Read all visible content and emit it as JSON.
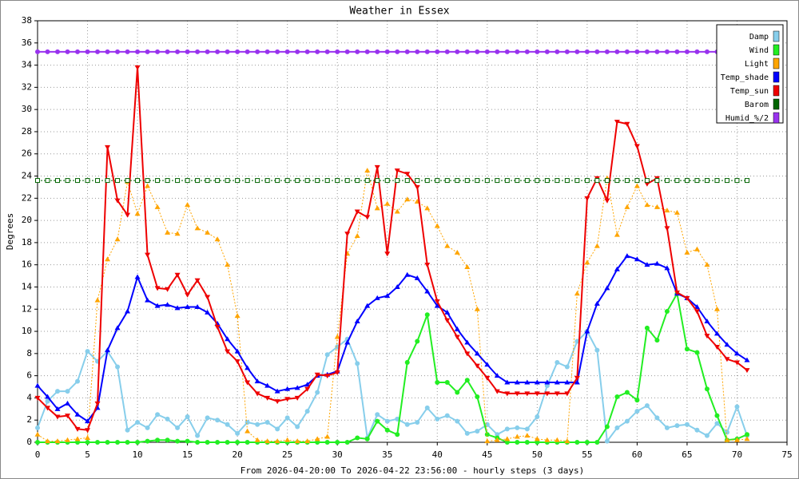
{
  "chart_data": {
    "type": "line",
    "title": "Weather in Essex",
    "ylabel": "Degrees",
    "xlabel": "From 2026-04-20:00 To 2026-04-22 23:56:00 - hourly steps (3 days)",
    "x": [
      0,
      1,
      2,
      3,
      4,
      5,
      6,
      7,
      8,
      9,
      10,
      11,
      12,
      13,
      14,
      15,
      16,
      17,
      18,
      19,
      20,
      21,
      22,
      23,
      24,
      25,
      26,
      27,
      28,
      29,
      30,
      31,
      32,
      33,
      34,
      35,
      36,
      37,
      38,
      39,
      40,
      41,
      42,
      43,
      44,
      45,
      46,
      47,
      48,
      49,
      50,
      51,
      52,
      53,
      54,
      55,
      56,
      57,
      58,
      59,
      60,
      61,
      62,
      63,
      64,
      65,
      66,
      67,
      68,
      69,
      70,
      71
    ],
    "xlim": [
      0,
      75
    ],
    "xticks": [
      0,
      5,
      10,
      15,
      20,
      25,
      30,
      35,
      40,
      45,
      50,
      55,
      60,
      65,
      70,
      75
    ],
    "ylim": [
      0,
      38
    ],
    "yticks": [
      0,
      2,
      4,
      6,
      8,
      10,
      12,
      14,
      16,
      18,
      20,
      22,
      24,
      26,
      28,
      30,
      32,
      34,
      36,
      38
    ],
    "grid": true,
    "legend": "upper right",
    "series": [
      {
        "name": "Damp",
        "color": "#87ceeb",
        "dotted": false,
        "values": [
          1.3,
          3.7,
          4.6,
          4.6,
          5.5,
          8.2,
          7.3,
          8.2,
          6.8,
          1.1,
          1.8,
          1.3,
          2.5,
          2.1,
          1.3,
          2.3,
          0.6,
          2.2,
          2.0,
          1.6,
          0.8,
          1.8,
          1.6,
          1.8,
          1.2,
          2.2,
          1.4,
          2.8,
          4.5,
          7.9,
          8.6,
          9.3,
          7.1,
          0.4,
          2.5,
          1.9,
          2.1,
          1.6,
          1.8,
          3.1,
          2.1,
          2.4,
          1.9,
          0.8,
          1.0,
          1.6,
          0.7,
          1.2,
          1.3,
          1.2,
          2.3,
          5.1,
          7.2,
          6.8,
          9.1,
          10.0,
          8.3,
          0.1,
          1.3,
          1.9,
          2.8,
          3.3,
          2.2,
          1.3,
          1.5,
          1.6,
          1.1,
          0.6,
          1.7,
          0.9,
          3.2,
          0.6
        ]
      },
      {
        "name": "Wind",
        "color": "#22ee22",
        "dotted": false,
        "values": [
          0,
          0,
          0,
          0,
          0,
          0,
          0,
          0,
          0,
          0,
          0,
          0.1,
          0.2,
          0.2,
          0.1,
          0.1,
          0,
          0,
          0,
          0,
          0,
          0,
          0,
          0,
          0,
          0,
          0,
          0,
          0,
          0,
          0,
          0,
          0.4,
          0.3,
          1.9,
          1.1,
          0.7,
          7.2,
          9.1,
          11.5,
          5.4,
          5.4,
          4.5,
          5.6,
          4.1,
          0.7,
          0.4,
          0,
          0,
          0,
          0,
          0,
          0,
          0,
          0,
          0,
          0,
          1.4,
          4.1,
          4.5,
          3.8,
          10.3,
          9.2,
          11.8,
          13.4,
          8.4,
          8.1,
          4.8,
          2.4,
          0.2,
          0.3,
          0.7
        ]
      },
      {
        "name": "Light",
        "color": "#ffa500",
        "dotted": true,
        "values": [
          0.7,
          0.1,
          0.1,
          0.2,
          0.3,
          0.4,
          12.8,
          16.5,
          18.3,
          23.5,
          20.6,
          23.1,
          21.2,
          18.9,
          18.8,
          21.4,
          19.3,
          18.9,
          18.3,
          16.0,
          11.4,
          1.0,
          0.2,
          0.1,
          0.1,
          0.2,
          0.1,
          0.1,
          0.3,
          0.5,
          9.5,
          17.0,
          18.6,
          24.5,
          21.1,
          21.5,
          20.8,
          21.9,
          21.7,
          21.1,
          19.5,
          17.7,
          17.1,
          15.8,
          12.0,
          0.1,
          0.2,
          0.3,
          0.5,
          0.6,
          0.3,
          0.2,
          0.2,
          0.1,
          13.4,
          16.2,
          17.7,
          23.8,
          18.7,
          21.2,
          23.1,
          21.4,
          21.2,
          20.9,
          20.7,
          17.1,
          17.4,
          16.0,
          12.0,
          0.2,
          0.2,
          0.3
        ]
      },
      {
        "name": "Temp_shade",
        "color": "#0000ff",
        "dotted": false,
        "values": [
          5.1,
          4.1,
          3.0,
          3.5,
          2.5,
          1.9,
          3.1,
          8.3,
          10.3,
          11.8,
          14.9,
          12.8,
          12.3,
          12.4,
          12.1,
          12.2,
          12.2,
          11.7,
          10.7,
          9.3,
          8.2,
          6.7,
          5.5,
          5.1,
          4.6,
          4.8,
          4.9,
          5.2,
          6.0,
          6.1,
          6.4,
          9.0,
          10.9,
          12.3,
          13.0,
          13.2,
          14.0,
          15.1,
          14.8,
          13.6,
          12.3,
          11.7,
          10.2,
          9.0,
          8.0,
          7.0,
          6.0,
          5.4,
          5.4,
          5.4,
          5.4,
          5.4,
          5.4,
          5.4,
          5.4,
          10.0,
          12.5,
          13.9,
          15.6,
          16.8,
          16.5,
          16.0,
          16.1,
          15.7,
          13.4,
          13.0,
          12.2,
          10.9,
          9.8,
          8.8,
          8.0,
          7.4
        ]
      },
      {
        "name": "Temp_sun",
        "color": "#ee0000",
        "dotted": false,
        "values": [
          4.0,
          3.1,
          2.3,
          2.4,
          1.2,
          1.1,
          3.5,
          26.6,
          21.8,
          20.5,
          33.8,
          16.9,
          13.9,
          13.8,
          15.1,
          13.3,
          14.6,
          13.1,
          10.4,
          8.2,
          7.3,
          5.4,
          4.4,
          4.0,
          3.7,
          3.9,
          4.0,
          4.8,
          6.1,
          6.0,
          6.3,
          18.8,
          20.8,
          20.3,
          24.8,
          17.0,
          24.5,
          24.2,
          23.0,
          16.0,
          12.7,
          11.0,
          9.5,
          8.0,
          6.9,
          5.8,
          4.6,
          4.4,
          4.4,
          4.4,
          4.4,
          4.4,
          4.4,
          4.4,
          5.8,
          22.0,
          23.8,
          21.8,
          28.9,
          28.7,
          26.7,
          23.3,
          23.8,
          19.3,
          13.5,
          13.0,
          11.8,
          9.6,
          8.6,
          7.5,
          7.2,
          6.5
        ]
      },
      {
        "name": "Barom",
        "color": "#006400",
        "dotted": true,
        "values": [
          23.6,
          23.6,
          23.6,
          23.6,
          23.6,
          23.6,
          23.6,
          23.6,
          23.6,
          23.6,
          23.6,
          23.6,
          23.6,
          23.6,
          23.6,
          23.6,
          23.6,
          23.6,
          23.6,
          23.6,
          23.6,
          23.6,
          23.6,
          23.6,
          23.6,
          23.6,
          23.6,
          23.6,
          23.6,
          23.6,
          23.6,
          23.6,
          23.6,
          23.6,
          23.6,
          23.6,
          23.6,
          23.6,
          23.6,
          23.6,
          23.6,
          23.6,
          23.6,
          23.6,
          23.6,
          23.6,
          23.6,
          23.6,
          23.6,
          23.6,
          23.6,
          23.6,
          23.6,
          23.6,
          23.6,
          23.6,
          23.6,
          23.6,
          23.6,
          23.6,
          23.6,
          23.6,
          23.6,
          23.6,
          23.6,
          23.6,
          23.6,
          23.6,
          23.6,
          23.6,
          23.6,
          23.6
        ]
      },
      {
        "name": "Humid_%/2",
        "color": "#9933ee",
        "dotted": false,
        "values": [
          35.2,
          35.2,
          35.2,
          35.2,
          35.2,
          35.2,
          35.2,
          35.2,
          35.2,
          35.2,
          35.2,
          35.2,
          35.2,
          35.2,
          35.2,
          35.2,
          35.2,
          35.2,
          35.2,
          35.2,
          35.2,
          35.2,
          35.2,
          35.2,
          35.2,
          35.2,
          35.2,
          35.2,
          35.2,
          35.2,
          35.2,
          35.2,
          35.2,
          35.2,
          35.2,
          35.2,
          35.2,
          35.2,
          35.2,
          35.2,
          35.2,
          35.2,
          35.2,
          35.2,
          35.2,
          35.2,
          35.2,
          35.2,
          35.2,
          35.2,
          35.2,
          35.2,
          35.2,
          35.2,
          35.2,
          35.2,
          35.2,
          35.2,
          35.2,
          35.2,
          35.2,
          35.2,
          35.2,
          35.2,
          35.2,
          35.2,
          35.2,
          35.2,
          35.2,
          null,
          null,
          null
        ]
      }
    ]
  }
}
